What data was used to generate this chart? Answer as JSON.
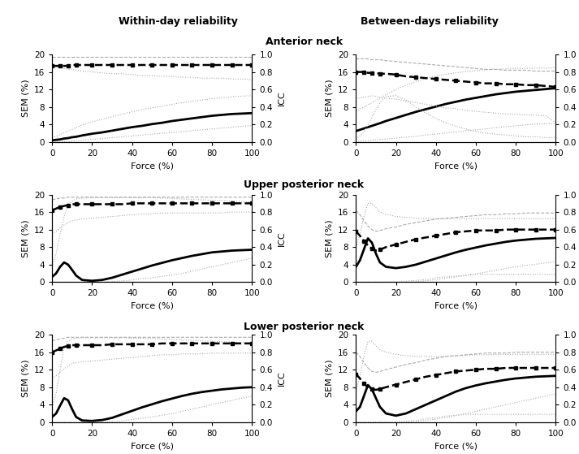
{
  "force": [
    0,
    2,
    4,
    6,
    8,
    10,
    12,
    15,
    20,
    25,
    30,
    35,
    40,
    45,
    50,
    55,
    60,
    65,
    70,
    75,
    80,
    85,
    90,
    95,
    100
  ],
  "panels": {
    "anterior_within": {
      "sem_mean": [
        0.4,
        0.5,
        0.6,
        0.8,
        0.9,
        1.1,
        1.2,
        1.5,
        1.9,
        2.2,
        2.6,
        3.0,
        3.4,
        3.7,
        4.1,
        4.4,
        4.8,
        5.1,
        5.4,
        5.7,
        6.0,
        6.2,
        6.4,
        6.5,
        6.6
      ],
      "sem_ci_upper": [
        1.0,
        1.3,
        1.7,
        2.1,
        2.5,
        2.9,
        3.3,
        3.9,
        4.6,
        5.2,
        5.8,
        6.4,
        6.9,
        7.4,
        7.8,
        8.2,
        8.6,
        9.0,
        9.3,
        9.6,
        9.9,
        10.1,
        10.3,
        10.5,
        10.6
      ],
      "sem_ci_lower": [
        0.0,
        0.0,
        0.0,
        0.1,
        0.1,
        0.2,
        0.3,
        0.4,
        0.6,
        0.8,
        1.0,
        1.2,
        1.4,
        1.6,
        1.8,
        2.0,
        2.2,
        2.4,
        2.6,
        2.8,
        3.0,
        3.2,
        3.4,
        3.6,
        3.8
      ],
      "icc_mean": [
        0.87,
        0.87,
        0.87,
        0.87,
        0.87,
        0.88,
        0.88,
        0.88,
        0.88,
        0.88,
        0.88,
        0.88,
        0.88,
        0.88,
        0.88,
        0.88,
        0.88,
        0.88,
        0.88,
        0.88,
        0.88,
        0.88,
        0.88,
        0.88,
        0.88
      ],
      "icc_ci_upper": [
        0.97,
        0.97,
        0.97,
        0.97,
        0.97,
        0.97,
        0.97,
        0.97,
        0.97,
        0.97,
        0.97,
        0.97,
        0.97,
        0.97,
        0.97,
        0.97,
        0.97,
        0.97,
        0.97,
        0.97,
        0.97,
        0.97,
        0.97,
        0.97,
        0.97
      ],
      "icc_ci_lower": [
        0.87,
        0.86,
        0.85,
        0.84,
        0.83,
        0.83,
        0.82,
        0.81,
        0.8,
        0.79,
        0.78,
        0.78,
        0.77,
        0.76,
        0.76,
        0.75,
        0.75,
        0.74,
        0.74,
        0.73,
        0.73,
        0.73,
        0.72,
        0.72,
        0.71
      ]
    },
    "anterior_between": {
      "sem_mean": [
        2.5,
        2.8,
        3.1,
        3.4,
        3.7,
        4.0,
        4.3,
        4.8,
        5.5,
        6.2,
        6.9,
        7.5,
        8.1,
        8.7,
        9.2,
        9.7,
        10.1,
        10.5,
        10.9,
        11.2,
        11.5,
        11.7,
        11.9,
        12.1,
        12.3
      ],
      "sem_ci_upper": [
        7.0,
        7.5,
        8.0,
        8.5,
        9.0,
        9.5,
        10.0,
        10.8,
        12.0,
        13.0,
        13.8,
        14.5,
        15.1,
        15.5,
        15.8,
        16.1,
        16.3,
        16.5,
        16.6,
        16.7,
        16.8,
        16.8,
        16.9,
        16.9,
        17.0
      ],
      "sem_ci_lower": [
        0.1,
        0.2,
        0.3,
        0.3,
        0.4,
        0.5,
        0.6,
        0.7,
        0.9,
        1.1,
        1.3,
        1.6,
        1.8,
        2.1,
        2.3,
        2.6,
        2.8,
        3.0,
        3.3,
        3.5,
        3.7,
        3.9,
        4.1,
        4.2,
        4.3
      ],
      "icc_mean": [
        0.8,
        0.8,
        0.8,
        0.79,
        0.79,
        0.79,
        0.78,
        0.78,
        0.77,
        0.75,
        0.74,
        0.73,
        0.72,
        0.71,
        0.7,
        0.69,
        0.68,
        0.67,
        0.67,
        0.66,
        0.66,
        0.65,
        0.65,
        0.64,
        0.63
      ],
      "icc_ci_upper": [
        0.95,
        0.95,
        0.95,
        0.95,
        0.94,
        0.94,
        0.94,
        0.93,
        0.92,
        0.91,
        0.9,
        0.89,
        0.88,
        0.87,
        0.86,
        0.85,
        0.84,
        0.83,
        0.83,
        0.82,
        0.82,
        0.82,
        0.81,
        0.81,
        0.81
      ],
      "icc_ci_lower": [
        0.5,
        0.5,
        0.51,
        0.52,
        0.53,
        0.52,
        0.51,
        0.5,
        0.49,
        0.47,
        0.45,
        0.43,
        0.41,
        0.39,
        0.38,
        0.36,
        0.35,
        0.34,
        0.33,
        0.32,
        0.32,
        0.31,
        0.31,
        0.3,
        0.22
      ],
      "icc_ci_lower2": [
        0.03,
        0.07,
        0.12,
        0.19,
        0.28,
        0.37,
        0.45,
        0.52,
        0.53,
        0.48,
        0.4,
        0.33,
        0.27,
        0.22,
        0.18,
        0.15,
        0.12,
        0.1,
        0.09,
        0.08,
        0.07,
        0.06,
        0.06,
        0.05,
        0.05
      ]
    },
    "upper_post_within": {
      "sem_mean": [
        1.2,
        2.0,
        3.5,
        4.5,
        4.0,
        2.8,
        1.5,
        0.5,
        0.3,
        0.5,
        1.0,
        1.7,
        2.4,
        3.1,
        3.8,
        4.4,
        5.0,
        5.5,
        6.0,
        6.4,
        6.8,
        7.0,
        7.2,
        7.3,
        7.4
      ],
      "sem_ci_upper": [
        3.5,
        6.5,
        11.0,
        15.0,
        17.5,
        18.5,
        19.0,
        19.2,
        19.3,
        19.3,
        19.3,
        19.3,
        19.3,
        19.3,
        19.3,
        19.2,
        19.1,
        19.0,
        18.9,
        18.8,
        18.7,
        18.6,
        18.5,
        18.4,
        18.3
      ],
      "sem_ci_lower": [
        0.0,
        0.0,
        0.0,
        0.0,
        0.0,
        0.0,
        0.0,
        0.0,
        0.0,
        0.0,
        0.1,
        0.3,
        0.5,
        0.8,
        1.0,
        1.3,
        1.6,
        2.0,
        2.5,
        3.0,
        3.5,
        4.0,
        4.5,
        5.0,
        5.5
      ],
      "icc_mean": [
        0.82,
        0.84,
        0.86,
        0.87,
        0.88,
        0.89,
        0.89,
        0.89,
        0.89,
        0.89,
        0.89,
        0.89,
        0.9,
        0.9,
        0.9,
        0.9,
        0.9,
        0.9,
        0.9,
        0.9,
        0.9,
        0.9,
        0.9,
        0.9,
        0.9
      ],
      "icc_ci_upper": [
        0.94,
        0.95,
        0.96,
        0.96,
        0.97,
        0.97,
        0.97,
        0.97,
        0.97,
        0.97,
        0.97,
        0.97,
        0.97,
        0.97,
        0.97,
        0.97,
        0.97,
        0.97,
        0.97,
        0.97,
        0.97,
        0.97,
        0.97,
        0.97,
        0.97
      ],
      "icc_ci_lower": [
        0.55,
        0.58,
        0.62,
        0.65,
        0.68,
        0.7,
        0.71,
        0.72,
        0.73,
        0.74,
        0.75,
        0.76,
        0.77,
        0.78,
        0.78,
        0.79,
        0.79,
        0.79,
        0.79,
        0.79,
        0.79,
        0.79,
        0.8,
        0.8,
        0.8
      ]
    },
    "upper_post_between": {
      "sem_mean": [
        3.5,
        5.0,
        7.5,
        10.0,
        9.0,
        6.5,
        4.5,
        3.5,
        3.2,
        3.5,
        4.0,
        4.7,
        5.4,
        6.1,
        6.8,
        7.4,
        7.9,
        8.4,
        8.8,
        9.2,
        9.5,
        9.7,
        9.9,
        10.0,
        10.1
      ],
      "sem_ci_upper": [
        8.0,
        11.0,
        15.0,
        18.0,
        18.0,
        17.0,
        16.0,
        15.5,
        15.0,
        14.8,
        14.6,
        14.5,
        14.5,
        14.5,
        14.5,
        14.5,
        14.5,
        14.5,
        14.5,
        14.5,
        14.5,
        14.5,
        14.5,
        14.5,
        14.5
      ],
      "sem_ci_lower": [
        0.0,
        0.0,
        0.0,
        0.0,
        0.0,
        0.0,
        0.0,
        0.0,
        0.0,
        0.0,
        0.1,
        0.3,
        0.6,
        0.9,
        1.2,
        1.5,
        1.9,
        2.3,
        2.7,
        3.1,
        3.5,
        3.8,
        4.1,
        4.4,
        4.7
      ],
      "icc_mean": [
        0.58,
        0.53,
        0.47,
        0.42,
        0.38,
        0.36,
        0.37,
        0.4,
        0.43,
        0.46,
        0.49,
        0.51,
        0.53,
        0.55,
        0.57,
        0.58,
        0.59,
        0.59,
        0.59,
        0.6,
        0.6,
        0.6,
        0.6,
        0.6,
        0.6
      ],
      "icc_ci_upper": [
        0.82,
        0.77,
        0.7,
        0.64,
        0.6,
        0.58,
        0.59,
        0.61,
        0.63,
        0.66,
        0.68,
        0.7,
        0.72,
        0.73,
        0.74,
        0.75,
        0.76,
        0.77,
        0.77,
        0.78,
        0.78,
        0.79,
        0.79,
        0.79,
        0.79
      ],
      "icc_ci_lower": [
        0.0,
        0.0,
        0.0,
        0.0,
        0.0,
        0.0,
        0.0,
        0.0,
        0.0,
        0.01,
        0.02,
        0.03,
        0.05,
        0.06,
        0.07,
        0.08,
        0.09,
        0.09,
        0.09,
        0.09,
        0.09,
        0.09,
        0.09,
        0.09,
        0.09
      ]
    },
    "lower_post_within": {
      "sem_mean": [
        1.2,
        2.0,
        3.8,
        5.5,
        5.0,
        3.0,
        1.2,
        0.4,
        0.3,
        0.5,
        1.0,
        1.8,
        2.6,
        3.4,
        4.1,
        4.8,
        5.4,
        6.0,
        6.5,
        6.9,
        7.2,
        7.5,
        7.7,
        7.9,
        8.0
      ],
      "sem_ci_upper": [
        3.5,
        6.5,
        12.0,
        17.0,
        18.5,
        19.0,
        19.2,
        19.3,
        19.3,
        19.3,
        19.3,
        19.3,
        19.2,
        19.2,
        19.1,
        19.0,
        18.9,
        18.8,
        18.7,
        18.6,
        18.5,
        18.4,
        18.3,
        18.2,
        18.1
      ],
      "sem_ci_lower": [
        0.0,
        0.0,
        0.0,
        0.0,
        0.0,
        0.0,
        0.0,
        0.0,
        0.0,
        0.0,
        0.1,
        0.3,
        0.6,
        0.9,
        1.2,
        1.6,
        2.0,
        2.5,
        3.0,
        3.5,
        4.0,
        4.5,
        5.0,
        5.5,
        6.0
      ],
      "icc_mean": [
        0.8,
        0.82,
        0.84,
        0.86,
        0.87,
        0.88,
        0.88,
        0.88,
        0.88,
        0.88,
        0.89,
        0.89,
        0.89,
        0.89,
        0.89,
        0.9,
        0.9,
        0.9,
        0.9,
        0.9,
        0.9,
        0.9,
        0.9,
        0.9,
        0.9
      ],
      "icc_ci_upper": [
        0.93,
        0.94,
        0.95,
        0.96,
        0.97,
        0.97,
        0.97,
        0.97,
        0.97,
        0.97,
        0.97,
        0.97,
        0.97,
        0.97,
        0.97,
        0.97,
        0.97,
        0.97,
        0.97,
        0.97,
        0.97,
        0.97,
        0.97,
        0.97,
        0.97
      ],
      "icc_ci_lower": [
        0.5,
        0.53,
        0.57,
        0.61,
        0.64,
        0.67,
        0.68,
        0.69,
        0.7,
        0.71,
        0.72,
        0.73,
        0.74,
        0.75,
        0.76,
        0.77,
        0.77,
        0.78,
        0.78,
        0.78,
        0.79,
        0.79,
        0.79,
        0.79,
        0.79
      ]
    },
    "lower_post_between": {
      "sem_mean": [
        2.5,
        3.5,
        6.0,
        8.5,
        7.5,
        5.5,
        3.5,
        2.0,
        1.5,
        2.0,
        3.0,
        4.0,
        5.0,
        6.0,
        7.0,
        7.8,
        8.4,
        8.9,
        9.3,
        9.7,
        10.0,
        10.2,
        10.4,
        10.5,
        10.6
      ],
      "sem_ci_upper": [
        7.0,
        10.5,
        15.0,
        18.5,
        18.5,
        17.5,
        16.5,
        16.0,
        15.5,
        15.2,
        15.0,
        15.0,
        15.0,
        15.1,
        15.2,
        15.3,
        15.4,
        15.4,
        15.5,
        15.5,
        15.5,
        15.5,
        15.5,
        15.5,
        15.5
      ],
      "sem_ci_lower": [
        0.0,
        0.0,
        0.0,
        0.0,
        0.0,
        0.0,
        0.0,
        0.0,
        0.0,
        0.0,
        0.1,
        0.4,
        0.7,
        1.1,
        1.5,
        2.0,
        2.5,
        3.0,
        3.5,
        4.0,
        4.5,
        5.0,
        5.5,
        6.0,
        6.5
      ],
      "icc_mean": [
        0.55,
        0.5,
        0.44,
        0.4,
        0.38,
        0.37,
        0.38,
        0.4,
        0.43,
        0.46,
        0.49,
        0.52,
        0.54,
        0.56,
        0.58,
        0.59,
        0.6,
        0.61,
        0.61,
        0.62,
        0.62,
        0.62,
        0.62,
        0.62,
        0.62
      ],
      "icc_ci_upper": [
        0.8,
        0.75,
        0.68,
        0.62,
        0.58,
        0.57,
        0.58,
        0.6,
        0.63,
        0.66,
        0.68,
        0.71,
        0.73,
        0.75,
        0.76,
        0.77,
        0.78,
        0.79,
        0.79,
        0.79,
        0.8,
        0.8,
        0.8,
        0.8,
        0.8
      ],
      "icc_ci_lower": [
        0.0,
        0.0,
        0.0,
        0.0,
        0.0,
        0.0,
        0.0,
        0.0,
        0.0,
        0.01,
        0.02,
        0.04,
        0.05,
        0.07,
        0.08,
        0.09,
        0.09,
        0.09,
        0.09,
        0.09,
        0.09,
        0.09,
        0.09,
        0.09,
        0.09
      ]
    }
  },
  "row_titles": [
    "Anterior neck",
    "Upper posterior neck",
    "Lower posterior neck"
  ],
  "col_titles": [
    "Within-day reliability",
    "Between-days reliability"
  ],
  "xlabel": "Force (%)",
  "ylabel_left": "SEM (%)",
  "ylabel_right": "ICC",
  "xlim": [
    0,
    100
  ],
  "ylim_sem": [
    0,
    20
  ],
  "ylim_icc": [
    0.0,
    1.0
  ],
  "xticks": [
    0,
    20,
    40,
    60,
    80,
    100
  ],
  "yticks_sem": [
    0,
    4,
    8,
    12,
    16,
    20
  ],
  "yticks_icc": [
    0.0,
    0.2,
    0.4,
    0.6,
    0.8,
    1.0
  ]
}
